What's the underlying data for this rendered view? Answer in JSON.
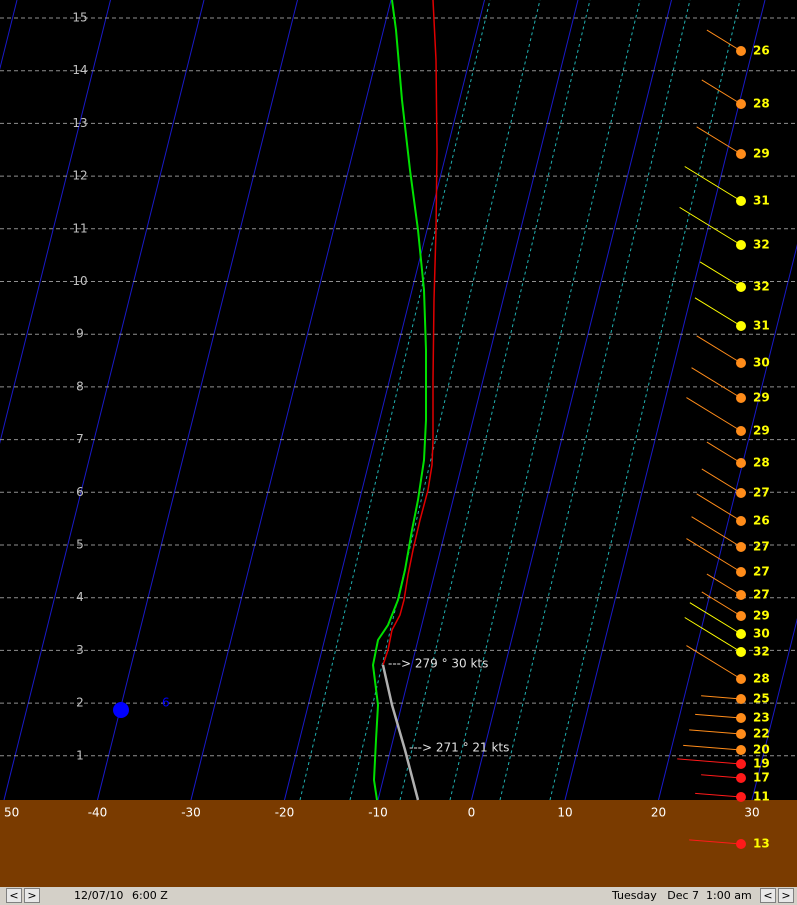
{
  "height_labels": [
    "15",
    "14",
    "13",
    "12",
    "11",
    "10",
    "9",
    "8",
    "7",
    "6",
    "5",
    "4",
    "3",
    "2",
    "1"
  ],
  "temperature_labels": [
    "50",
    "-40",
    "-30",
    "-20",
    "-10",
    "0",
    "10",
    "20",
    "30"
  ],
  "annotations": [
    "---> 279 ° 30 kts",
    "---> 271 ° 21 kts"
  ],
  "point_label": "6",
  "winds": [
    {
      "speed": "26",
      "color": "#ff8c1a"
    },
    {
      "speed": "28",
      "color": "#ff8c1a"
    },
    {
      "speed": "29",
      "color": "#ff8c1a"
    },
    {
      "speed": "31",
      "color": "#ffff00"
    },
    {
      "speed": "32",
      "color": "#ffff00"
    },
    {
      "speed": "32",
      "color": "#ffff00"
    },
    {
      "speed": "31",
      "color": "#ffff00"
    },
    {
      "speed": "30",
      "color": "#ff8c1a"
    },
    {
      "speed": "29",
      "color": "#ff8c1a"
    },
    {
      "speed": "29",
      "color": "#ff8c1a"
    },
    {
      "speed": "28",
      "color": "#ff8c1a"
    },
    {
      "speed": "27",
      "color": "#ff8c1a"
    },
    {
      "speed": "26",
      "color": "#ff8c1a"
    },
    {
      "speed": "27",
      "color": "#ff8c1a"
    },
    {
      "speed": "27",
      "color": "#ff8c1a"
    },
    {
      "speed": "27",
      "color": "#ff8c1a"
    },
    {
      "speed": "29",
      "color": "#ff8c1a"
    },
    {
      "speed": "30",
      "color": "#ffff00"
    },
    {
      "speed": "32",
      "color": "#ffff00"
    },
    {
      "speed": "28",
      "color": "#ff8c1a"
    },
    {
      "speed": "25",
      "color": "#ff8c1a"
    },
    {
      "speed": "23",
      "color": "#ff8c1a"
    },
    {
      "speed": "22",
      "color": "#ff8c1a"
    },
    {
      "speed": "20",
      "color": "#ff8c1a"
    },
    {
      "speed": "19",
      "color": "#ff1a1a"
    },
    {
      "speed": "17",
      "color": "#ff1a1a"
    },
    {
      "speed": "11",
      "color": "#ff1a1a"
    },
    {
      "speed": "13",
      "color": "#ff1a1a"
    }
  ],
  "status_bar": {
    "prev": "<",
    "next": ">",
    "date": "12/07/10",
    "time": "6:00 Z",
    "local_time": "Tuesday   Dec 7  1:00 am",
    "prev2": "<",
    "next2": ">"
  }
}
